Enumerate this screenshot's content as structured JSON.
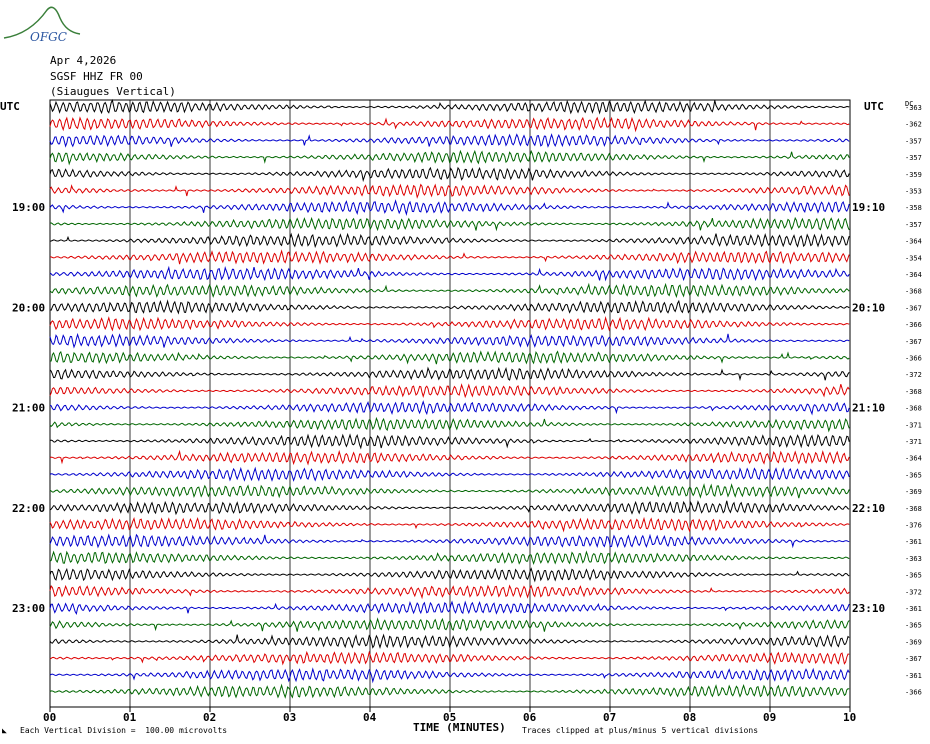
{
  "logo": {
    "text": "OFGC",
    "color": "#3a7f3a",
    "text_color": "#2a55a0"
  },
  "header": {
    "date": "Apr 4,2026",
    "station": "SGSF HHZ FR 00",
    "component": "(Siaugues Vertical)"
  },
  "axis": {
    "left_label": "UTC",
    "right_label": "UTC",
    "dc_label": "DC",
    "xlabel": "TIME (MINUTES)",
    "x_ticks": [
      "00",
      "01",
      "02",
      "03",
      "04",
      "05",
      "06",
      "07",
      "08",
      "09",
      "10"
    ],
    "left_hours": [
      "19:00",
      "20:00",
      "21:00",
      "22:00",
      "23:00"
    ],
    "right_hours": [
      "19:10",
      "20:10",
      "21:10",
      "22:10",
      "23:10"
    ]
  },
  "footer": {
    "scale_note": "Each Vertical Division =  100.00 microvolts",
    "clip_note": "Traces clipped at plus/minus 5 vertical divisions"
  },
  "chart_data": {
    "type": "line",
    "title": "",
    "xlabel": "TIME (MINUTES)",
    "ylabel": "",
    "xlim": [
      0,
      10
    ],
    "minutes_per_line": 10,
    "line_colors": [
      "#000000",
      "#dd0000",
      "#0000cc",
      "#006600"
    ],
    "dc_offsets": [
      -363,
      -362,
      -357,
      -357,
      -359,
      -353,
      -358,
      -357,
      -364,
      -354,
      -364,
      -368,
      -367,
      -366,
      -367,
      -366,
      -372,
      -368,
      -368,
      -371,
      -371,
      -364,
      -365,
      -369,
      -368,
      -376,
      -361,
      -363,
      -365,
      -372,
      -361,
      -365,
      -369,
      -367,
      -361,
      -366
    ]
  }
}
